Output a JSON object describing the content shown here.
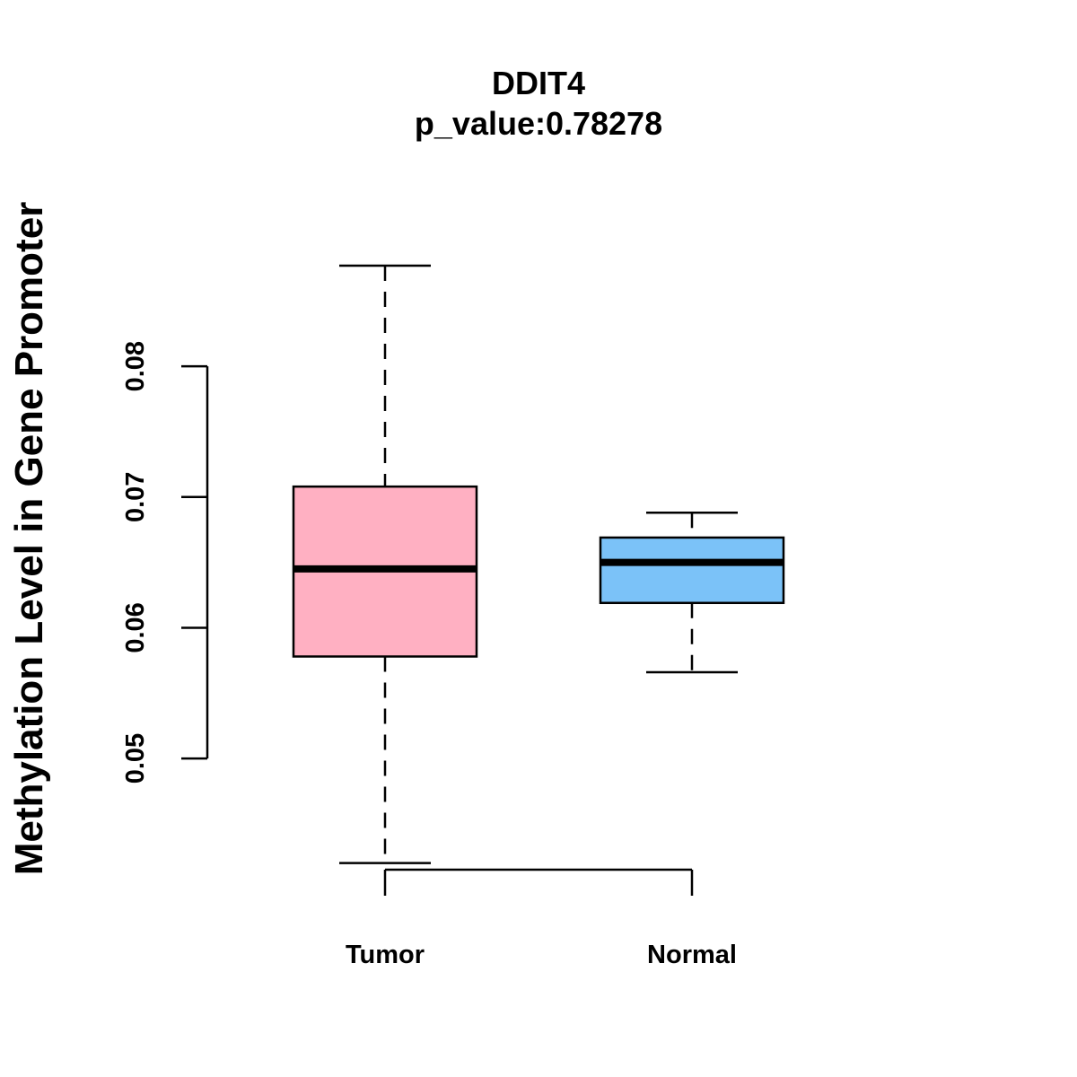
{
  "chart_data": {
    "type": "boxplot",
    "title": "DDIT4",
    "subtitle": "p_value:0.78278",
    "xlabel": "",
    "ylabel": "Methylation Level in Gene Promoter",
    "categories": [
      "Tumor",
      "Normal"
    ],
    "ylim": [
      0.0395,
      0.0945
    ],
    "y_ticks": [
      0.05,
      0.06,
      0.07,
      0.08
    ],
    "y_tick_labels": [
      "0.05",
      "0.06",
      "0.07",
      "0.08"
    ],
    "grid": false,
    "legend": "none",
    "boxes": [
      {
        "name": "Tumor",
        "whisker_low": 0.042,
        "q1": 0.0578,
        "median": 0.0645,
        "q3": 0.0708,
        "whisker_high": 0.0877,
        "color": "#FFB0C2"
      },
      {
        "name": "Normal",
        "whisker_low": 0.0566,
        "q1": 0.0619,
        "median": 0.065,
        "q3": 0.0669,
        "whisker_high": 0.0688,
        "color": "#7BC2F8"
      }
    ]
  }
}
